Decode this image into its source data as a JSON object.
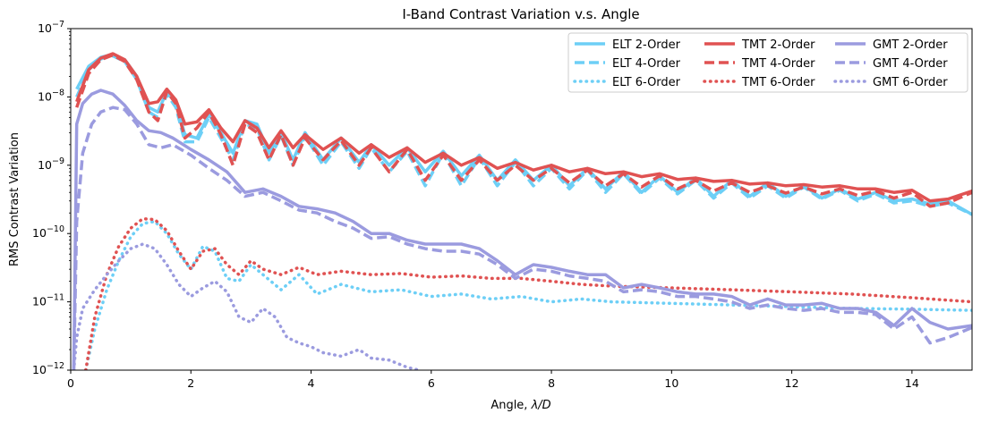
{
  "chart_data": {
    "type": "line",
    "title": "I-Band Contrast Variation v.s. Angle",
    "xlabel": "Angle, λ/D",
    "ylabel": "RMS Contrast Variation",
    "xlim": [
      0,
      15
    ],
    "ylim": [
      1e-12,
      1e-07
    ],
    "yscale": "log",
    "grid": false,
    "legend_position": "top-right",
    "x_ticks": [
      0,
      2,
      4,
      6,
      8,
      10,
      12,
      14
    ],
    "x_tick_labels": [
      "0",
      "2",
      "4",
      "6",
      "8",
      "10",
      "12",
      "14"
    ],
    "y_ticks": [
      1e-12,
      1e-11,
      1e-10,
      1e-09,
      1e-08,
      1e-07
    ],
    "y_tick_labels": [
      {
        "base": "10",
        "exp": "−12"
      },
      {
        "base": "10",
        "exp": "−11"
      },
      {
        "base": "10",
        "exp": "−10"
      },
      {
        "base": "10",
        "exp": "−9"
      },
      {
        "base": "10",
        "exp": "−8"
      },
      {
        "base": "10",
        "exp": "−7"
      }
    ],
    "colors": {
      "ELT": "#6dcff6",
      "TMT": "#e05252",
      "GMT": "#9b9bdf"
    },
    "series": [
      {
        "name": "ELT 2-Order",
        "telescope": "ELT",
        "style": "solid",
        "x": [
          0.1,
          0.3,
          0.5,
          0.7,
          0.9,
          1.1,
          1.3,
          1.45,
          1.6,
          1.75,
          1.9,
          2.1,
          2.3,
          2.5,
          2.7,
          2.9,
          3.1,
          3.3,
          3.5,
          3.7,
          3.9,
          4.2,
          4.5,
          4.8,
          5.0,
          5.3,
          5.6,
          5.9,
          6.2,
          6.5,
          6.8,
          7.1,
          7.4,
          7.7,
          8.0,
          8.3,
          8.6,
          8.9,
          9.2,
          9.5,
          9.8,
          10.1,
          10.4,
          10.7,
          11.0,
          11.3,
          11.6,
          11.9,
          12.2,
          12.5,
          12.8,
          13.1,
          13.4,
          13.7,
          14.0,
          14.3,
          14.6,
          15.0
        ],
        "values": [
          1.3e-08,
          2.8e-08,
          3.8e-08,
          4.2e-08,
          3.5e-08,
          2e-08,
          7e-09,
          6e-09,
          1.2e-08,
          8e-09,
          2.8e-09,
          2.5e-09,
          5.5e-09,
          3e-09,
          1.5e-09,
          4.5e-09,
          4e-09,
          1.5e-09,
          3e-09,
          1.2e-09,
          3e-09,
          1.2e-09,
          2.5e-09,
          1.1e-09,
          2e-09,
          1e-09,
          1.8e-09,
          8e-10,
          1.6e-09,
          7e-10,
          1.4e-09,
          6e-10,
          1.2e-09,
          6e-10,
          1e-09,
          5e-10,
          9e-10,
          4.5e-10,
          8e-10,
          4e-10,
          7e-10,
          4e-10,
          6.5e-10,
          3.5e-10,
          6e-10,
          3.5e-10,
          5.5e-10,
          3.5e-10,
          5e-10,
          3.3e-10,
          4.5e-10,
          3.2e-10,
          4e-10,
          3e-10,
          3.2e-10,
          2.7e-10,
          3e-10,
          1.9e-10
        ]
      },
      {
        "name": "ELT 4-Order",
        "telescope": "ELT",
        "style": "dashed",
        "x": [
          0.1,
          0.3,
          0.5,
          0.7,
          0.9,
          1.1,
          1.3,
          1.45,
          1.6,
          1.75,
          1.9,
          2.1,
          2.3,
          2.5,
          2.7,
          2.9,
          3.1,
          3.3,
          3.5,
          3.7,
          3.9,
          4.2,
          4.5,
          4.8,
          5.0,
          5.3,
          5.6,
          5.9,
          6.2,
          6.5,
          6.8,
          7.1,
          7.4,
          7.7,
          8.0,
          8.3,
          8.6,
          8.9,
          9.2,
          9.5,
          9.8,
          10.1,
          10.4,
          10.7,
          11.0,
          11.3,
          11.6,
          11.9,
          12.2,
          12.5,
          12.8,
          13.1,
          13.4,
          13.7,
          14.0,
          14.3,
          14.6,
          15.0
        ],
        "values": [
          1e-08,
          2.5e-08,
          3.6e-08,
          4e-08,
          3.3e-08,
          1.8e-08,
          6e-09,
          5e-09,
          1.1e-08,
          7e-09,
          2.2e-09,
          2.2e-09,
          5e-09,
          2.5e-09,
          1.2e-09,
          4e-09,
          3.5e-09,
          1.2e-09,
          2.7e-09,
          1e-09,
          2.7e-09,
          1e-09,
          2.2e-09,
          9e-10,
          1.8e-09,
          8e-10,
          1.6e-09,
          5e-10,
          1.5e-09,
          5e-10,
          1.3e-09,
          5e-10,
          1.1e-09,
          5e-10,
          9e-10,
          4.5e-10,
          8.5e-10,
          4e-10,
          7.5e-10,
          3.8e-10,
          6.5e-10,
          3.8e-10,
          6e-10,
          3.3e-10,
          5.5e-10,
          3.3e-10,
          5e-10,
          3.3e-10,
          4.8e-10,
          3.2e-10,
          4.3e-10,
          3e-10,
          3.8e-10,
          2.8e-10,
          3e-10,
          2.5e-10,
          2.8e-10,
          1.9e-10
        ]
      },
      {
        "name": "ELT 6-Order",
        "telescope": "ELT",
        "style": "dotted",
        "x": [
          0.25,
          0.4,
          0.6,
          0.8,
          1.0,
          1.2,
          1.4,
          1.6,
          1.8,
          2.0,
          2.2,
          2.4,
          2.6,
          2.8,
          3.0,
          3.2,
          3.5,
          3.8,
          4.1,
          4.5,
          5.0,
          5.5,
          6.0,
          6.5,
          7.0,
          7.5,
          8.0,
          8.5,
          9.0,
          10.0,
          11.0,
          12.0,
          13.0,
          14.0,
          15.0
        ],
        "values": [
          1e-12,
          4e-12,
          1.5e-11,
          4e-11,
          9e-11,
          1.4e-10,
          1.5e-10,
          1e-10,
          5e-11,
          3e-11,
          6.5e-11,
          5.5e-11,
          2.2e-11,
          2e-11,
          3.5e-11,
          2.5e-11,
          1.5e-11,
          2.5e-11,
          1.3e-11,
          1.8e-11,
          1.4e-11,
          1.5e-11,
          1.2e-11,
          1.3e-11,
          1.1e-11,
          1.2e-11,
          1e-11,
          1.1e-11,
          1e-11,
          9.5e-12,
          9e-12,
          8.5e-12,
          8e-12,
          7.8e-12,
          7.5e-12
        ]
      },
      {
        "name": "TMT 2-Order",
        "telescope": "TMT",
        "style": "solid",
        "x": [
          0.1,
          0.3,
          0.5,
          0.7,
          0.9,
          1.1,
          1.3,
          1.45,
          1.6,
          1.75,
          1.9,
          2.1,
          2.3,
          2.5,
          2.7,
          2.9,
          3.1,
          3.3,
          3.5,
          3.7,
          3.9,
          4.2,
          4.5,
          4.8,
          5.0,
          5.3,
          5.6,
          5.9,
          6.2,
          6.5,
          6.8,
          7.1,
          7.4,
          7.7,
          8.0,
          8.3,
          8.6,
          8.9,
          9.2,
          9.5,
          9.8,
          10.1,
          10.4,
          10.7,
          11.0,
          11.3,
          11.6,
          11.9,
          12.2,
          12.5,
          12.8,
          13.1,
          13.4,
          13.7,
          14.0,
          14.3,
          14.6,
          15.0
        ],
        "values": [
          8.5e-09,
          2.5e-08,
          3.7e-08,
          4.3e-08,
          3.5e-08,
          2e-08,
          8e-09,
          8.5e-09,
          1.3e-08,
          9e-09,
          4e-09,
          4.3e-09,
          6.5e-09,
          3.5e-09,
          2.2e-09,
          4.5e-09,
          3.5e-09,
          1.8e-09,
          3.2e-09,
          1.8e-09,
          2.8e-09,
          1.7e-09,
          2.5e-09,
          1.5e-09,
          2e-09,
          1.3e-09,
          1.8e-09,
          1.1e-09,
          1.5e-09,
          1e-09,
          1.3e-09,
          9e-10,
          1.1e-09,
          8.5e-10,
          1e-09,
          8e-10,
          9e-10,
          7.5e-10,
          8e-10,
          6.8e-10,
          7.5e-10,
          6.2e-10,
          6.5e-10,
          5.8e-10,
          6e-10,
          5.3e-10,
          5.5e-10,
          5e-10,
          5.2e-10,
          4.8e-10,
          5e-10,
          4.5e-10,
          4.5e-10,
          4e-10,
          4.3e-10,
          3e-10,
          3.2e-10,
          4.2e-10
        ]
      },
      {
        "name": "TMT 4-Order",
        "telescope": "TMT",
        "style": "dashed",
        "x": [
          0.1,
          0.3,
          0.5,
          0.7,
          0.9,
          1.1,
          1.3,
          1.45,
          1.6,
          1.75,
          1.9,
          2.1,
          2.3,
          2.5,
          2.7,
          2.9,
          3.1,
          3.3,
          3.5,
          3.7,
          3.9,
          4.2,
          4.5,
          4.8,
          5.0,
          5.3,
          5.6,
          5.9,
          6.2,
          6.5,
          6.8,
          7.1,
          7.4,
          7.7,
          8.0,
          8.3,
          8.6,
          8.9,
          9.2,
          9.5,
          9.8,
          10.1,
          10.4,
          10.7,
          11.0,
          11.3,
          11.6,
          11.9,
          12.2,
          12.5,
          12.8,
          13.1,
          13.4,
          13.7,
          14.0,
          14.3,
          14.6,
          15.0
        ],
        "values": [
          7e-09,
          2.2e-08,
          3.5e-08,
          4.1e-08,
          3.3e-08,
          1.8e-08,
          6e-09,
          4.5e-09,
          1.2e-08,
          8e-09,
          2.5e-09,
          3.5e-09,
          6e-09,
          2.8e-09,
          1e-09,
          4e-09,
          3e-09,
          1.2e-09,
          2.8e-09,
          1e-09,
          2.5e-09,
          1.2e-09,
          2.3e-09,
          1e-09,
          1.8e-09,
          8e-10,
          1.7e-09,
          6e-10,
          1.4e-09,
          6e-10,
          1.2e-09,
          6e-10,
          1e-09,
          6e-10,
          9e-10,
          5.5e-10,
          8.5e-10,
          5e-10,
          7.5e-10,
          4.8e-10,
          7e-10,
          4.5e-10,
          6e-10,
          4.2e-10,
          5.5e-10,
          4e-10,
          5e-10,
          3.9e-10,
          4.8e-10,
          3.8e-10,
          4.5e-10,
          3.6e-10,
          4.2e-10,
          3.3e-10,
          4e-10,
          2.5e-10,
          2.8e-10,
          4e-10
        ]
      },
      {
        "name": "TMT 6-Order",
        "telescope": "TMT",
        "style": "dotted",
        "x": [
          0.25,
          0.4,
          0.6,
          0.8,
          1.0,
          1.2,
          1.4,
          1.6,
          1.8,
          2.0,
          2.2,
          2.4,
          2.6,
          2.8,
          3.0,
          3.2,
          3.5,
          3.8,
          4.1,
          4.5,
          5.0,
          5.5,
          6.0,
          6.5,
          7.0,
          7.5,
          8.0,
          8.5,
          9.0,
          10.0,
          11.0,
          12.0,
          13.0,
          14.0,
          15.0
        ],
        "values": [
          1e-12,
          6e-12,
          2.5e-11,
          6.5e-11,
          1.2e-10,
          1.65e-10,
          1.6e-10,
          1.1e-10,
          5.5e-11,
          3e-11,
          5.5e-11,
          6e-11,
          3.5e-11,
          2.5e-11,
          4e-11,
          3e-11,
          2.5e-11,
          3.2e-11,
          2.5e-11,
          2.8e-11,
          2.5e-11,
          2.6e-11,
          2.3e-11,
          2.4e-11,
          2.2e-11,
          2.2e-11,
          2e-11,
          1.8e-11,
          1.7e-11,
          1.6e-11,
          1.5e-11,
          1.4e-11,
          1.3e-11,
          1.15e-11,
          1e-11
        ]
      },
      {
        "name": "GMT 2-Order",
        "telescope": "GMT",
        "style": "solid",
        "x": [
          0.05,
          0.1,
          0.2,
          0.35,
          0.5,
          0.7,
          0.9,
          1.1,
          1.3,
          1.5,
          1.7,
          2.0,
          2.3,
          2.6,
          2.9,
          3.2,
          3.5,
          3.8,
          4.1,
          4.4,
          4.7,
          5.0,
          5.3,
          5.6,
          5.9,
          6.2,
          6.5,
          6.8,
          7.1,
          7.4,
          7.7,
          8.0,
          8.3,
          8.6,
          8.9,
          9.2,
          9.5,
          9.8,
          10.1,
          10.4,
          10.7,
          11.0,
          11.3,
          11.6,
          11.9,
          12.2,
          12.5,
          12.8,
          13.1,
          13.4,
          13.7,
          14.0,
          14.3,
          14.6,
          15.0
        ],
        "values": [
          1e-12,
          4e-09,
          8e-09,
          1.1e-08,
          1.25e-08,
          1.1e-08,
          7.5e-09,
          4.5e-09,
          3.2e-09,
          3e-09,
          2.5e-09,
          1.7e-09,
          1.2e-09,
          8e-10,
          4e-10,
          4.5e-10,
          3.5e-10,
          2.5e-10,
          2.3e-10,
          2e-10,
          1.5e-10,
          1e-10,
          1e-10,
          8e-11,
          7e-11,
          7e-11,
          7e-11,
          6e-11,
          4e-11,
          2.5e-11,
          3.5e-11,
          3.2e-11,
          2.8e-11,
          2.5e-11,
          2.5e-11,
          1.6e-11,
          1.8e-11,
          1.6e-11,
          1.4e-11,
          1.3e-11,
          1.3e-11,
          1.2e-11,
          9e-12,
          1.1e-11,
          9e-12,
          9e-12,
          9.5e-12,
          8e-12,
          8e-12,
          7e-12,
          4.5e-12,
          8e-12,
          5e-12,
          4e-12,
          4.5e-12
        ]
      },
      {
        "name": "GMT 4-Order",
        "telescope": "GMT",
        "style": "dashed",
        "x": [
          0.05,
          0.1,
          0.2,
          0.35,
          0.5,
          0.7,
          0.9,
          1.1,
          1.3,
          1.5,
          1.7,
          2.0,
          2.3,
          2.6,
          2.9,
          3.2,
          3.5,
          3.8,
          4.1,
          4.4,
          4.7,
          5.0,
          5.3,
          5.6,
          5.9,
          6.2,
          6.5,
          6.8,
          7.1,
          7.4,
          7.7,
          8.0,
          8.3,
          8.6,
          8.9,
          9.2,
          9.5,
          9.8,
          10.1,
          10.4,
          10.7,
          11.0,
          11.3,
          11.6,
          11.9,
          12.2,
          12.5,
          12.8,
          13.1,
          13.4,
          13.7,
          14.0,
          14.3,
          14.6,
          15.0
        ],
        "values": [
          1e-12,
          1.5e-10,
          1.5e-09,
          4e-09,
          6e-09,
          7e-09,
          6.5e-09,
          4e-09,
          2e-09,
          1.8e-09,
          2e-09,
          1.4e-09,
          9e-10,
          6e-10,
          3.5e-10,
          4e-10,
          3e-10,
          2.2e-10,
          2e-10,
          1.5e-10,
          1.2e-10,
          8.5e-11,
          9e-11,
          7e-11,
          6e-11,
          5.5e-11,
          5.5e-11,
          5e-11,
          3.5e-11,
          2.2e-11,
          3e-11,
          2.8e-11,
          2.4e-11,
          2.2e-11,
          2e-11,
          1.4e-11,
          1.5e-11,
          1.4e-11,
          1.2e-11,
          1.2e-11,
          1.1e-11,
          1e-11,
          8e-12,
          9e-12,
          8e-12,
          7.5e-12,
          8e-12,
          7e-12,
          7e-12,
          6.5e-12,
          4e-12,
          6e-12,
          2.5e-12,
          3e-12,
          4.2e-12
        ]
      },
      {
        "name": "GMT 6-Order",
        "telescope": "GMT",
        "style": "dotted",
        "x": [
          0.05,
          0.1,
          0.2,
          0.4,
          0.6,
          0.8,
          1.0,
          1.2,
          1.4,
          1.6,
          1.8,
          2.0,
          2.2,
          2.4,
          2.6,
          2.8,
          3.0,
          3.2,
          3.4,
          3.6,
          3.8,
          4.0,
          4.2,
          4.5,
          4.8,
          5.0,
          5.3,
          5.6,
          5.8
        ],
        "values": [
          1e-12,
          3e-12,
          8e-12,
          1.5e-11,
          2.5e-11,
          4e-11,
          6e-11,
          7e-11,
          6e-11,
          3.5e-11,
          1.8e-11,
          1.2e-11,
          1.6e-11,
          2e-11,
          1.4e-11,
          6e-12,
          5e-12,
          8e-12,
          6e-12,
          3e-12,
          2.5e-12,
          2.2e-12,
          1.8e-12,
          1.6e-12,
          2e-12,
          1.5e-12,
          1.4e-12,
          1.1e-12,
          1e-12
        ]
      }
    ]
  }
}
